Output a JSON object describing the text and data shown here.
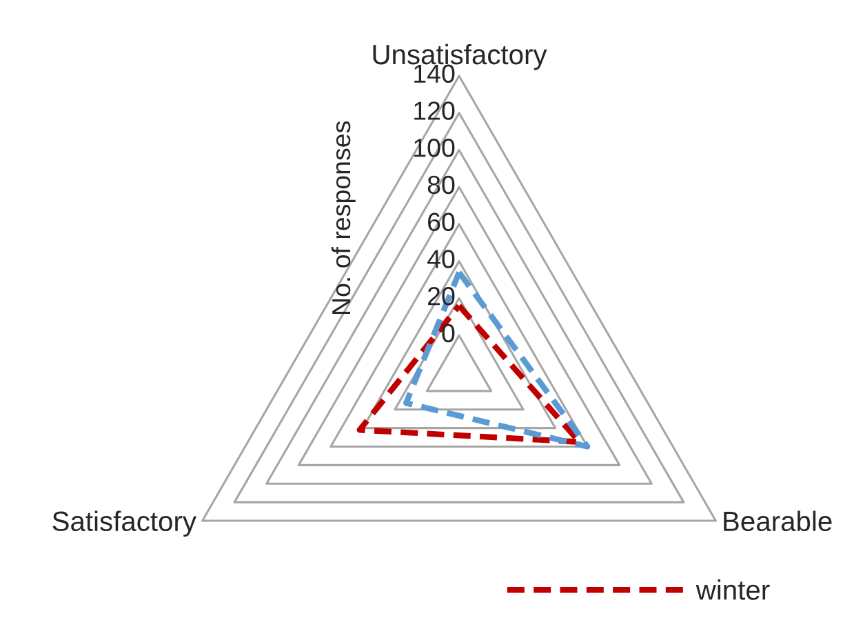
{
  "chart_data": {
    "type": "radar",
    "ylabel": "No. of responses",
    "categories": [
      "Unsatisfactory",
      "Bearable",
      "Satisfactory"
    ],
    "series": [
      {
        "name": "winter",
        "color": "#c00000",
        "values": [
          16,
          55,
          42
        ]
      },
      {
        "color": "#5b9bd5",
        "values": [
          34,
          60,
          13
        ]
      }
    ],
    "ylim": [
      -20,
      140
    ],
    "yticks": [
      0,
      20,
      40,
      60,
      80,
      100,
      120,
      140
    ],
    "line_style": "dashed",
    "marker": "none",
    "grid": true,
    "legend": "bottom"
  }
}
